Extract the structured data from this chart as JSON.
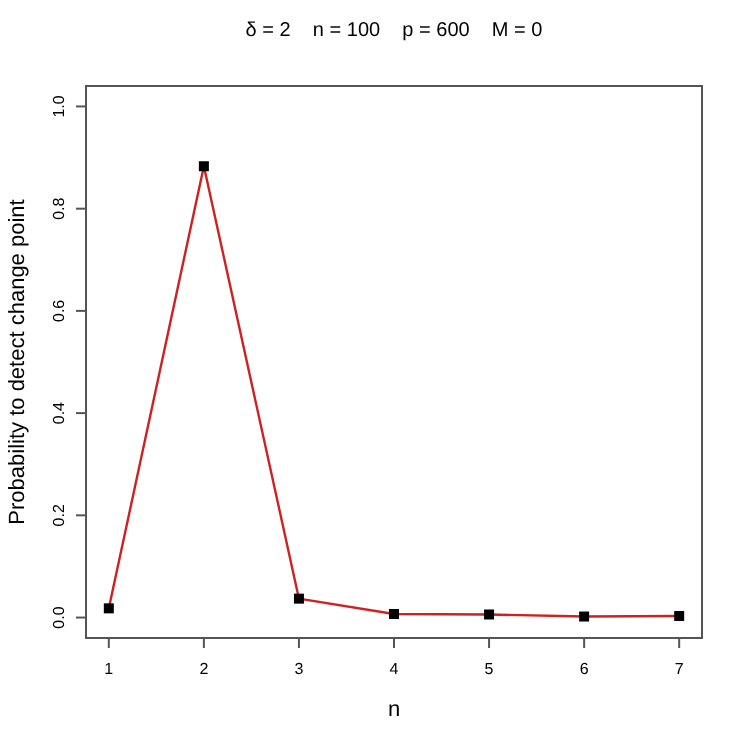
{
  "chart_data": {
    "type": "line",
    "title": "δ = 2    n = 100    p = 600    M = 0",
    "xlabel": "n",
    "ylabel": "Probability to detect change point",
    "x": [
      1,
      2,
      3,
      4,
      5,
      6,
      7
    ],
    "series": [
      {
        "color": "#cc2222",
        "values": [
          0.018,
          0.883,
          0.037,
          0.007,
          0.006,
          0.002,
          0.003
        ]
      }
    ],
    "xlim": [
      0.76,
      7.24
    ],
    "xticks": [
      1,
      2,
      3,
      4,
      5,
      6,
      7
    ],
    "ylim": [
      -0.04,
      1.04
    ],
    "yticks": [
      {
        "value": 0,
        "label": "0.0"
      },
      {
        "value": 0.2,
        "label": "0.2"
      },
      {
        "value": 0.4,
        "label": "0.4"
      },
      {
        "value": 0.6,
        "label": "0.6"
      },
      {
        "value": 0.8,
        "label": "0.8"
      },
      {
        "value": 1,
        "label": "1.0"
      }
    ],
    "marker": "square",
    "grid": false
  }
}
